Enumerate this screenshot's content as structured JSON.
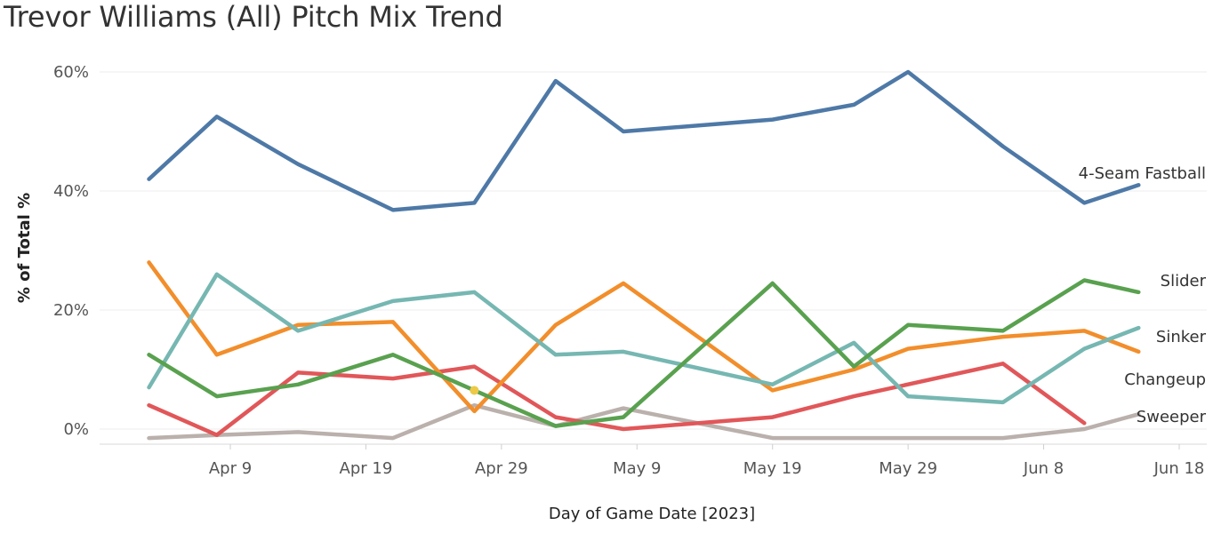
{
  "chart_data": {
    "type": "line",
    "title": "Trevor Williams (All) Pitch Mix Trend",
    "xlabel": "Day of Game Date [2023]",
    "ylabel": "% of Total %",
    "x_ticks": [
      "Apr 9",
      "Apr 19",
      "Apr 29",
      "May 9",
      "May 19",
      "May 29",
      "Jun 8",
      "Jun 18"
    ],
    "x_tick_dates": [
      "2023-04-09",
      "2023-04-19",
      "2023-04-29",
      "2023-05-09",
      "2023-05-19",
      "2023-05-29",
      "2023-06-08",
      "2023-06-18"
    ],
    "y_ticks": [
      "0%",
      "20%",
      "40%",
      "60%"
    ],
    "ylim": [
      -2,
      62
    ],
    "xlim": [
      "2023-04-02",
      "2023-06-20"
    ],
    "grid": true,
    "dates": [
      "2023-04-03",
      "2023-04-08",
      "2023-04-14",
      "2023-04-21",
      "2023-04-27",
      "2023-05-03",
      "2023-05-08",
      "2023-05-19",
      "2023-05-25",
      "2023-05-29",
      "2023-06-05",
      "2023-06-11",
      "2023-06-15"
    ],
    "series": [
      {
        "name": "4-Seam Fastball",
        "color": "#4e79a7",
        "values": [
          42,
          52.5,
          44.5,
          36.8,
          38,
          58.5,
          50,
          52,
          54.5,
          60,
          47.5,
          38,
          41
        ]
      },
      {
        "name": "Slider",
        "color": "#59a14f",
        "values": [
          12.5,
          5.5,
          7.5,
          12.5,
          6.5,
          0.5,
          2,
          24.5,
          10.5,
          17.5,
          16.5,
          25,
          23
        ]
      },
      {
        "name": "Sinker",
        "color": "#76b7b2",
        "values": [
          7,
          26,
          16.5,
          21.5,
          23,
          12.5,
          13,
          7.5,
          14.5,
          5.5,
          4.5,
          13.5,
          17
        ]
      },
      {
        "name": "Changeup",
        "color": "#f28e2b",
        "values": [
          28,
          12.5,
          17.5,
          18,
          3,
          17.5,
          24.5,
          6.5,
          10,
          13.5,
          15.5,
          16.5,
          13
        ]
      },
      {
        "name": "Sweeper",
        "color": "#bab0ac",
        "values": [
          -1.5,
          -1,
          -0.5,
          -1.5,
          4,
          0.5,
          3.5,
          -1.5,
          -1.5,
          -1.5,
          -1.5,
          0,
          2.5
        ]
      }
    ],
    "extra_series": [
      {
        "color": "#e15759",
        "dates": [
          "2023-04-03",
          "2023-04-08",
          "2023-04-14",
          "2023-04-21",
          "2023-04-27",
          "2023-05-03",
          "2023-05-08",
          "2023-05-19",
          "2023-05-25",
          "2023-06-05",
          "2023-06-11"
        ],
        "values": [
          4,
          -1,
          9.5,
          8.5,
          10.5,
          2,
          0,
          2,
          5.5,
          11,
          1
        ]
      }
    ],
    "marker": {
      "date": "2023-04-27",
      "value": 6.5,
      "color": "#edc948"
    }
  }
}
